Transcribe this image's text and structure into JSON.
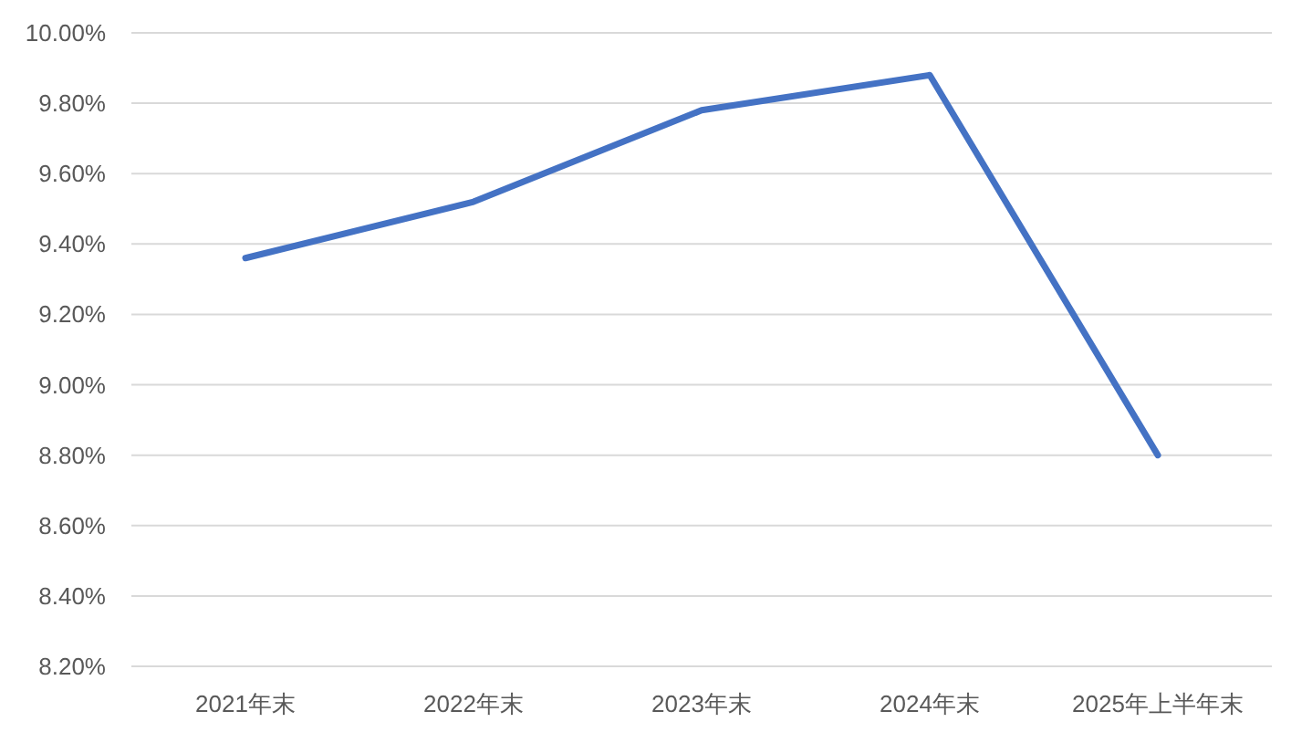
{
  "chart_data": {
    "type": "line",
    "categories": [
      "2021年末",
      "2022年末",
      "2023年末",
      "2024年末",
      "2025年上半年末"
    ],
    "series": [
      {
        "color": "#4472c4",
        "values": [
          9.36,
          9.52,
          9.78,
          9.88,
          8.8
        ]
      }
    ],
    "ylim": [
      8.2,
      10.0
    ],
    "yticks": [
      {
        "value": 8.2,
        "label": "8.20%"
      },
      {
        "value": 8.4,
        "label": "8.40%"
      },
      {
        "value": 8.6,
        "label": "8.60%"
      },
      {
        "value": 8.8,
        "label": "8.80%"
      },
      {
        "value": 9.0,
        "label": "9.00%"
      },
      {
        "value": 9.2,
        "label": "9.20%"
      },
      {
        "value": 9.4,
        "label": "9.40%"
      },
      {
        "value": 9.6,
        "label": "9.60%"
      },
      {
        "value": 9.8,
        "label": "9.80%"
      },
      {
        "value": 10.0,
        "label": "10.00%"
      }
    ],
    "grid": "y",
    "marker": "none",
    "line_style": "solid"
  }
}
